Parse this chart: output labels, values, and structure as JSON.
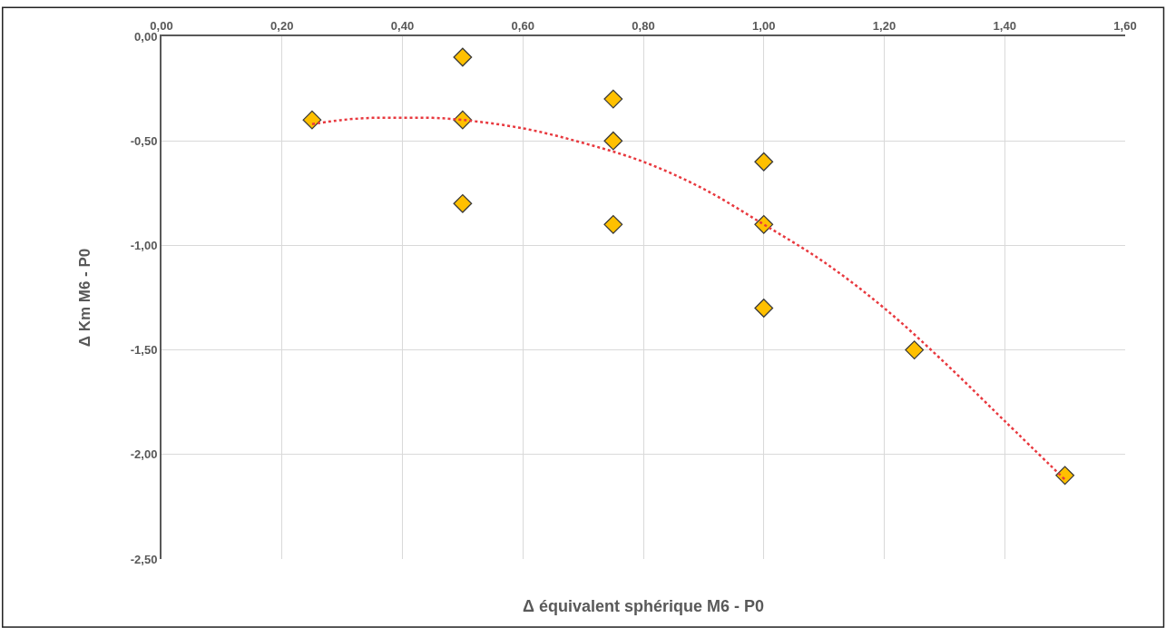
{
  "chart_data": {
    "type": "scatter",
    "xlabel": "Δ équivalent sphérique M6 - P0",
    "ylabel": "Δ Km M6 - P0",
    "xlim": [
      0,
      1.6
    ],
    "xticks": [
      {
        "value": 0,
        "label": "0,00"
      },
      {
        "value": 0.2,
        "label": "0,20"
      },
      {
        "value": 0.4,
        "label": "0,40"
      },
      {
        "value": 0.6,
        "label": "0,60"
      },
      {
        "value": 0.8,
        "label": "0,80"
      },
      {
        "value": 1.0,
        "label": "1,00"
      },
      {
        "value": 1.2,
        "label": "1,20"
      },
      {
        "value": 1.4,
        "label": "1,40"
      },
      {
        "value": 1.6,
        "label": "1,60"
      }
    ],
    "ylim": [
      -2.5,
      0
    ],
    "yticks": [
      {
        "value": 0,
        "label": "0,00"
      },
      {
        "value": -0.5,
        "label": "-0,50"
      },
      {
        "value": -1.0,
        "label": "-1,00"
      },
      {
        "value": -1.5,
        "label": "-1,50"
      },
      {
        "value": -2.0,
        "label": "-2,00"
      },
      {
        "value": -2.5,
        "label": "-2,50"
      }
    ],
    "grid": true,
    "series": [
      {
        "marker": "diamond",
        "color": "#ffc000",
        "x": [
          0.25,
          0.5,
          0.5,
          0.5,
          0.75,
          0.75,
          0.75,
          1.0,
          1.0,
          1.0,
          1.25,
          1.5
        ],
        "values": [
          -0.4,
          -0.1,
          -0.4,
          -0.8,
          -0.3,
          -0.5,
          -0.9,
          -0.6,
          -0.9,
          -1.3,
          -1.5,
          -2.1
        ]
      },
      {
        "type": "line",
        "color": "#e8393f",
        "line_style": "dotted",
        "x": [
          0.25,
          0.3,
          0.35,
          0.4,
          0.45,
          0.5,
          0.6,
          0.7,
          0.8,
          0.9,
          1.0,
          1.1,
          1.2,
          1.3,
          1.4,
          1.5
        ],
        "values": [
          -0.42,
          -0.4,
          -0.39,
          -0.39,
          -0.39,
          -0.4,
          -0.44,
          -0.51,
          -0.6,
          -0.73,
          -0.9,
          -1.08,
          -1.3,
          -1.56,
          -1.84,
          -2.12
        ]
      }
    ]
  }
}
